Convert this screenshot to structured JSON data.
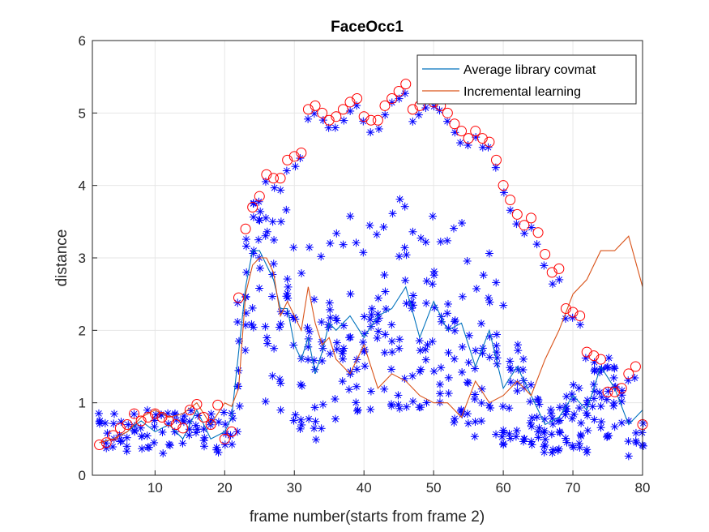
{
  "chart_data": {
    "type": "line",
    "title": "FaceOcc1",
    "xlabel": "frame number(starts from frame 2)",
    "ylabel": "distance",
    "xlim": [
      1,
      80
    ],
    "ylim": [
      0,
      6
    ],
    "xticks": [
      10,
      20,
      30,
      40,
      50,
      60,
      70,
      80
    ],
    "yticks": [
      0,
      1,
      2,
      3,
      4,
      5,
      6
    ],
    "grid": true,
    "legend_position": "top-right",
    "series": [
      {
        "name": "Average library covmat",
        "type": "line",
        "color": "#0072BD",
        "x": [
          2,
          4,
          6,
          8,
          10,
          12,
          14,
          16,
          18,
          20,
          21,
          22,
          23,
          24,
          25,
          26,
          27,
          28,
          29,
          30,
          31,
          32,
          33,
          34,
          35,
          36,
          38,
          40,
          42,
          44,
          46,
          48,
          50,
          52,
          54,
          56,
          58,
          60,
          62,
          64,
          66,
          68,
          70,
          72,
          74,
          76,
          78,
          80
        ],
        "y": [
          0.45,
          0.5,
          0.6,
          0.75,
          0.6,
          0.7,
          0.5,
          0.9,
          0.5,
          0.6,
          0.8,
          1.7,
          2.6,
          3.1,
          3.1,
          2.9,
          2.7,
          2.3,
          2.3,
          1.8,
          1.6,
          1.9,
          1.4,
          1.7,
          2.1,
          2.0,
          2.2,
          1.9,
          2.2,
          2.3,
          2.6,
          1.9,
          2.4,
          2.0,
          2.1,
          1.5,
          2.0,
          1.2,
          1.5,
          1.1,
          0.7,
          0.8,
          1.1,
          0.9,
          1.5,
          1.2,
          0.7,
          0.9
        ]
      },
      {
        "name": "Incremental learning",
        "type": "line",
        "color": "#D95319",
        "x": [
          2,
          4,
          6,
          8,
          10,
          12,
          14,
          16,
          18,
          20,
          21,
          22,
          23,
          24,
          25,
          26,
          27,
          28,
          29,
          30,
          31,
          32,
          33,
          34,
          35,
          36,
          38,
          40,
          42,
          44,
          46,
          48,
          50,
          52,
          54,
          56,
          58,
          60,
          62,
          64,
          66,
          68,
          70,
          72,
          74,
          76,
          78,
          80
        ],
        "y": [
          0.45,
          0.5,
          0.6,
          0.8,
          0.9,
          0.8,
          0.85,
          1.0,
          0.7,
          1.0,
          0.95,
          1.2,
          2.5,
          2.9,
          3.0,
          3.0,
          2.8,
          2.2,
          2.4,
          2.2,
          2.0,
          2.6,
          2.1,
          1.8,
          1.9,
          1.6,
          1.4,
          1.8,
          1.2,
          1.4,
          1.3,
          1.1,
          1.0,
          1.0,
          0.8,
          1.3,
          1.0,
          1.1,
          1.3,
          1.1,
          1.6,
          2.0,
          2.5,
          2.7,
          3.1,
          3.1,
          3.3,
          2.6
        ]
      },
      {
        "name": "",
        "type": "scatter",
        "marker": "circle",
        "color": "#FF0000",
        "x": [
          2,
          3,
          4,
          5,
          6,
          7,
          8,
          9,
          10,
          11,
          12,
          13,
          14,
          15,
          16,
          17,
          18,
          19,
          20,
          21,
          22,
          23,
          24,
          25,
          26,
          27,
          28,
          29,
          30,
          31,
          32,
          33,
          34,
          35,
          36,
          37,
          38,
          39,
          40,
          41,
          42,
          43,
          44,
          45,
          46,
          47,
          48,
          49,
          50,
          51,
          52,
          53,
          54,
          55,
          56,
          57,
          58,
          59,
          60,
          61,
          62,
          63,
          64,
          65,
          66,
          67,
          68,
          69,
          70,
          71,
          72,
          73,
          74,
          75,
          76,
          77,
          78,
          79,
          80
        ],
        "y": [
          0.42,
          0.45,
          0.55,
          0.65,
          0.7,
          0.85,
          0.75,
          0.8,
          0.85,
          0.8,
          0.75,
          0.7,
          0.65,
          0.9,
          0.98,
          0.8,
          0.7,
          0.97,
          0.5,
          0.6,
          2.45,
          3.4,
          3.7,
          3.85,
          4.15,
          4.1,
          4.1,
          4.35,
          4.4,
          4.45,
          5.05,
          5.1,
          5.0,
          4.9,
          4.95,
          5.05,
          5.15,
          5.2,
          4.95,
          4.9,
          4.9,
          5.1,
          5.2,
          5.3,
          5.4,
          5.05,
          5.1,
          5.2,
          5.15,
          5.1,
          5.0,
          4.85,
          4.75,
          4.65,
          4.75,
          4.65,
          4.6,
          4.35,
          4.0,
          3.8,
          3.6,
          3.45,
          3.55,
          3.35,
          3.05,
          2.8,
          2.85,
          2.3,
          2.25,
          2.2,
          1.7,
          1.65,
          1.6,
          1.15,
          1.15,
          1.2,
          1.4,
          1.5,
          0.7
        ]
      }
    ]
  }
}
